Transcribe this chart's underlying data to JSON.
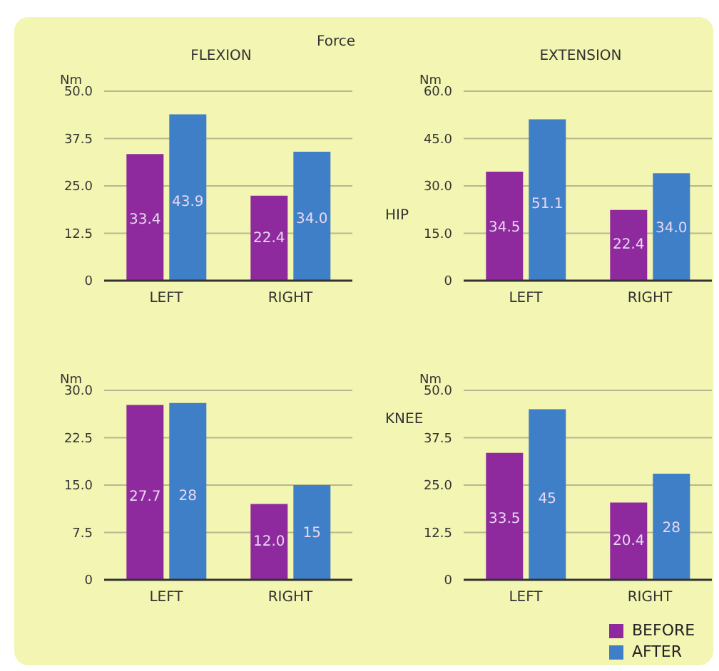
{
  "chart_data": [
    {
      "type": "bar",
      "title": "FLEXION",
      "ylabel": "Nm",
      "categories": [
        "LEFT",
        "RIGHT"
      ],
      "series": [
        {
          "color": "#8e2a9e",
          "values": [
            33.4,
            22.4
          ],
          "value_labels": [
            "33.4",
            "22.4"
          ]
        },
        {
          "color": "#3f7fc8",
          "values": [
            43.9,
            34.0
          ],
          "value_labels": [
            "43.9",
            "34.0"
          ]
        }
      ],
      "ylim": [
        0,
        50
      ],
      "yticks": [
        0,
        12.5,
        {
          "value": 25,
          "label": "25.0"
        },
        37.5,
        {
          "value": 50,
          "label": "50.0"
        }
      ],
      "grid": "y",
      "legend": false,
      "annotations": [
        "Force"
      ]
    },
    {
      "type": "bar",
      "title": "EXTENSION",
      "ylabel": "Nm",
      "categories": [
        "LEFT",
        "RIGHT"
      ],
      "series": [
        {
          "color": "#8e2a9e",
          "values": [
            34.5,
            22.4
          ],
          "value_labels": [
            "34.5",
            "22.4"
          ]
        },
        {
          "color": "#3f7fc8",
          "values": [
            51.1,
            34.0
          ],
          "value_labels": [
            "51.1",
            "34.0"
          ]
        }
      ],
      "ylim": [
        0,
        60
      ],
      "yticks": [
        0,
        {
          "value": 15,
          "label": "15.0"
        },
        {
          "value": 30,
          "label": "30.0"
        },
        {
          "value": 45,
          "label": "45.0"
        },
        {
          "value": 60,
          "label": "60.0"
        }
      ],
      "grid": "y",
      "legend": false,
      "annotations": [
        "HIP"
      ]
    },
    {
      "type": "bar",
      "ylabel": "Nm",
      "categories": [
        "LEFT",
        "RIGHT"
      ],
      "series": [
        {
          "color": "#8e2a9e",
          "values": [
            27.7,
            12.0
          ],
          "value_labels": [
            "27.7",
            "12.0"
          ]
        },
        {
          "color": "#3f7fc8",
          "values": [
            28,
            15
          ],
          "value_labels": [
            "28",
            "15"
          ]
        }
      ],
      "ylim": [
        0,
        30
      ],
      "yticks": [
        0,
        7.5,
        {
          "value": 15,
          "label": "15.0"
        },
        22.5,
        {
          "value": 30,
          "label": "30.0"
        }
      ],
      "grid": "y",
      "legend": false
    },
    {
      "type": "bar",
      "ylabel": "Nm",
      "categories": [
        "LEFT",
        "RIGHT"
      ],
      "series": [
        {
          "name": "BEFORE",
          "color": "#8e2a9e",
          "values": [
            33.5,
            20.4
          ],
          "value_labels": [
            "33.5",
            "20.4"
          ]
        },
        {
          "name": "AFTER",
          "color": "#3f7fc8",
          "values": [
            45,
            28
          ],
          "value_labels": [
            "45",
            "28"
          ]
        }
      ],
      "ylim": [
        0,
        50
      ],
      "yticks": [
        0,
        12.5,
        {
          "value": 25,
          "label": "25.0"
        },
        37.5,
        {
          "value": 50,
          "label": "50.0"
        }
      ],
      "grid": "y",
      "legend": "bottom right",
      "annotations": [
        "KNEE"
      ]
    }
  ]
}
